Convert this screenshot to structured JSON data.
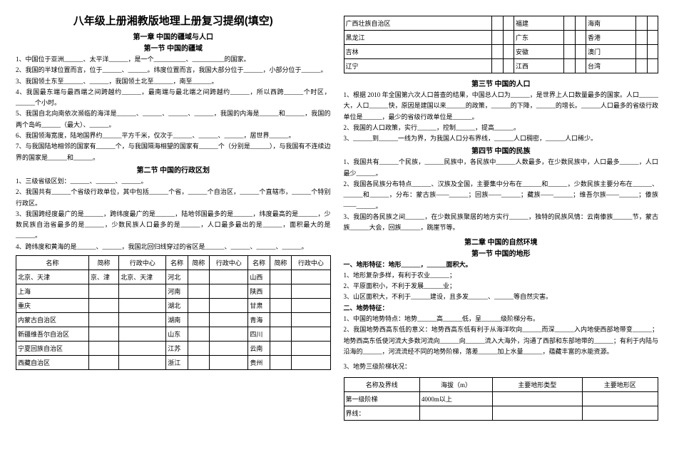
{
  "title": "八年级上册湘教版地理上册复习提纲(填空)",
  "left": {
    "chap1": "第一章 中国的疆域与人口",
    "sec1": "第一节 中国的疆域",
    "p1": "1、中国位于亚洲______、太平洋______，是一个__________、__________的国家。",
    "p2": "2、我国的半球位置而言，位于______、______。纬度位置而言，我国大部分位于______，小部分位于______。",
    "p3": "3、我国领土东至______、______，我国领土北至______，南至______。",
    "p4": "4、我国最东端与最西端之间跨越约______，最南端与最北端之间跨越约______，所以西跨______个时区，______个小时。",
    "p5": "5、我国自北向南依次濒临的海洋是______、______、______、______，我国的内海是______和______，我国的两个岛屿______（最大）、______。",
    "p6": "6、我国领海宽度，陆地国界约______平方千米，仅次于______、______、______，居世界______。",
    "p7": "7、与我国陆地相邻的国家有______个，与我国隔海相望的国家有______个（分别是______），与我国有不连续边界的国家是______和______。",
    "sec2": "第二节 中国的行政区划",
    "p8": "1、三级省级区划：______、______、______。",
    "p9": "2、我国共有______个省级行政单位，其中包括______个省，______个自治区，______个直辖市，______个特别行政区。",
    "p10": "3、我国跨经度最广的是______，跨纬度最广的是______，陆地邻国最多的是______，纬度最高的是______，少数民族自治省最多的是______，少数民族人口最多的是______，人口最多最出的是______，面积最大的是______。",
    "p11": "4、跨纬度和黄海的是______、______，我国北回归线穿过的省区是______、______、______、______。",
    "table1_headers": [
      "名称",
      "简称",
      "行政中心",
      "名称",
      "简称",
      "行政中心",
      "名称",
      "简称",
      "行政中心"
    ],
    "table1_rows": [
      [
        "北京、天津",
        "京、津",
        "北京、天津",
        "河北",
        "",
        "",
        "山西",
        "",
        ""
      ],
      [
        "上海",
        "",
        "",
        "河南",
        "",
        "",
        "陕西",
        "",
        ""
      ],
      [
        "重庆",
        "",
        "",
        "湖北",
        "",
        "",
        "甘肃",
        "",
        ""
      ],
      [
        "内蒙古自治区",
        "",
        "",
        "湖南",
        "",
        "",
        "青海",
        "",
        ""
      ],
      [
        "新疆维吾尔自治区",
        "",
        "",
        "山东",
        "",
        "",
        "四川",
        "",
        ""
      ],
      [
        "宁夏回族自治区",
        "",
        "",
        "江苏",
        "",
        "",
        "云南",
        "",
        ""
      ],
      [
        "西藏自治区",
        "",
        "",
        "浙江",
        "",
        "",
        "贵州",
        "",
        ""
      ]
    ]
  },
  "right": {
    "table2_rows": [
      [
        "广西壮族自治区",
        "",
        "",
        "福建",
        "",
        "",
        "海南",
        "",
        ""
      ],
      [
        "黑龙江",
        "",
        "",
        "广东",
        "",
        "",
        "香港",
        "",
        ""
      ],
      [
        "吉林",
        "",
        "",
        "安徽",
        "",
        "",
        "澳门",
        "",
        ""
      ],
      [
        "辽宁",
        "",
        "",
        "江西",
        "",
        "",
        "台湾",
        "",
        ""
      ]
    ],
    "sec3": "第三节 中国的人口",
    "r1": "1、根据 2010 年全国第六次人口普查的结果，中国总人口为______，是世界上人口数量最多的国家。人口______大，人口______快，原因是建国以来______的政策，______的下降，______的增长。______人口最多的省级行政单位是______，最少的省级行政单位是______。",
    "r2": "2、我国的人口政策，实行______，控制______，提高______。",
    "r3": "3、______到______一线为界，为我国人口分布界线，______人口稠密，______人口稀少。",
    "sec4": "第四节 中国的民族",
    "r4": "1、我国共有______个民族，______民族中，各民族中______人数最多，在少数民族中，人口最多______，人口最少______。",
    "r5": "2、我国各民族分布特点______、汉族及全国，主要集中分布在______和______，少数民族主要分布在______、______和______，分布：蒙古族——______；回族——______；藏族——______；维吾尔族——______；傣族——______。",
    "r6": "3、我国的各民族之间______，在少数民族聚居的地方实行______，独特的民族风情：云南傣族______节，蒙古族______大会，回族______，跳崖节等。",
    "chap2": "第二章 中国的自然环境",
    "sec5": "第一节 中国的地形",
    "sub1": "一、地形特征：地形______，______面积大。",
    "r7": "1、地形复杂多样，有利于农业______；",
    "r8": "2、平原面积小，不利于发展______业；",
    "r9": "3、山区面积大，不利于______建设，且多发______、______等自然灾害。",
    "sub2": "二、地势特征：",
    "r10": "1、中国的地势特点：地势______高______低，呈______级阶梯分布。",
    "r11": "2、我国地势西高东低的意义：地势西高东低有利于从海洋吹向______而深______入内地使西部地带变______；地势西高东低使河流大多数河流向______向______流入大海外，沟通了西部和东部地带的______；有利于内陆与沿海的______，河流流经不同的地势阶梯，落差______加上水量______，蕴藏丰富的水能资源。",
    "r12": "3、地势三级阶梯状况：",
    "table3_headers": [
      "名称及界线",
      "海拔（m）",
      "主要地形类型",
      "主要地形区"
    ],
    "table3_rows": [
      [
        "第一级阶梯",
        "4000m以上",
        "",
        ""
      ],
      [
        "界线：",
        "",
        "",
        ""
      ]
    ]
  }
}
